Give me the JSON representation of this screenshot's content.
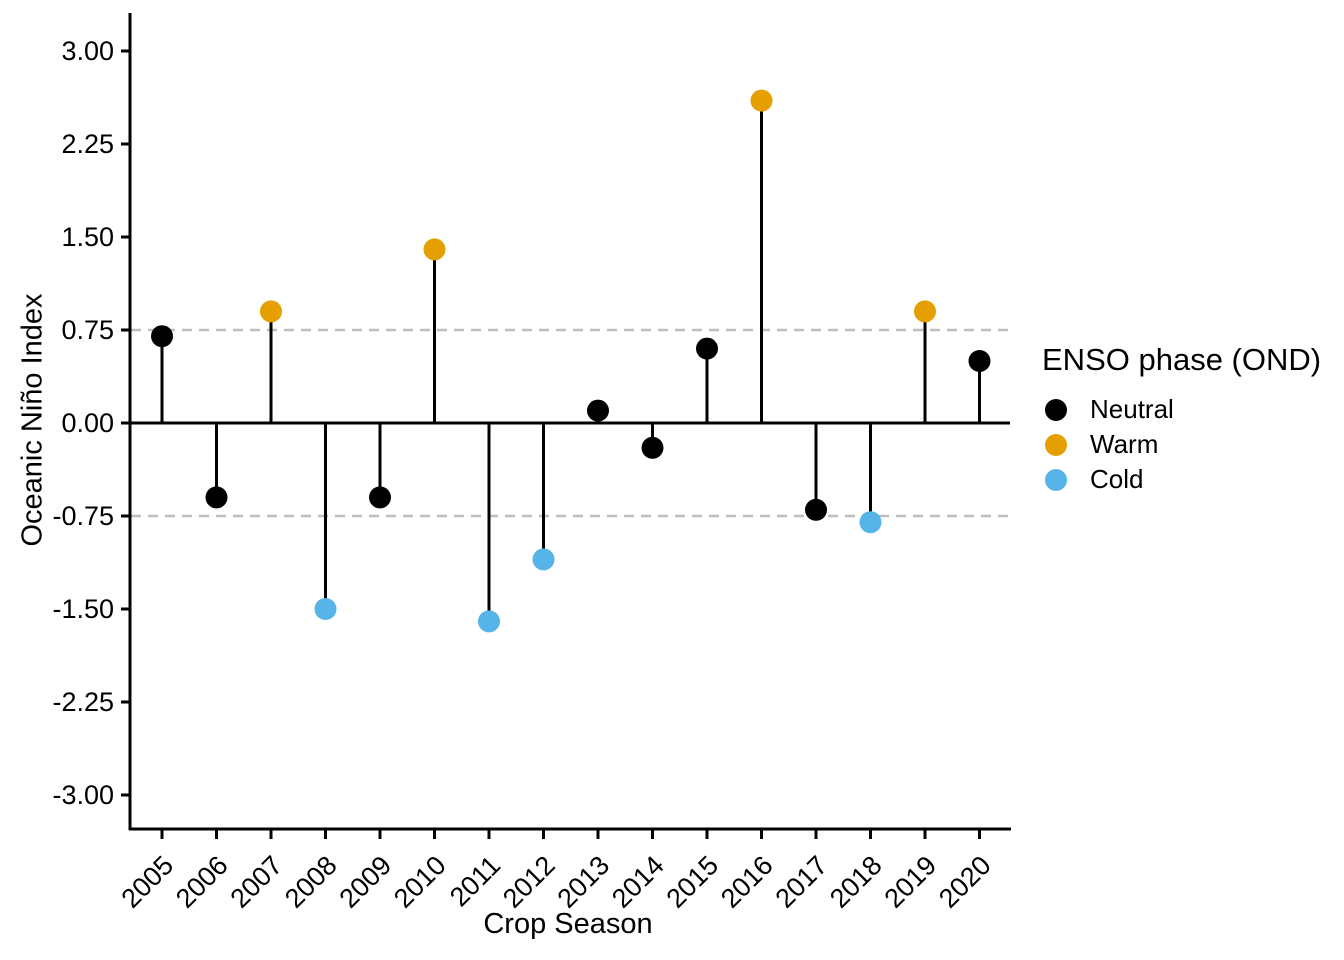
{
  "chart_data": {
    "type": "lollipop",
    "xlabel": "Crop Season",
    "ylabel": "Oceanic Niño Index",
    "categories": [
      "2005",
      "2006",
      "2007",
      "2008",
      "2009",
      "2010",
      "2011",
      "2012",
      "2013",
      "2014",
      "2015",
      "2016",
      "2017",
      "2018",
      "2019",
      "2020"
    ],
    "series": [
      {
        "name": "Oceanic Niño Index (OND)",
        "values": [
          0.7,
          -0.6,
          0.9,
          -1.5,
          -0.6,
          1.4,
          -1.6,
          -1.1,
          0.1,
          -0.2,
          0.6,
          2.6,
          -0.7,
          -0.8,
          0.9,
          0.5
        ]
      }
    ],
    "point_phases": [
      "Neutral",
      "Neutral",
      "Warm",
      "Cold",
      "Neutral",
      "Warm",
      "Cold",
      "Cold",
      "Neutral",
      "Neutral",
      "Neutral",
      "Warm",
      "Neutral",
      "Cold",
      "Warm",
      "Neutral"
    ],
    "phase_colors": {
      "Neutral": "#000000",
      "Warm": "#E69F00",
      "Cold": "#56B4E9"
    },
    "y_ticks": [
      {
        "value": 3.0,
        "label": "3.00"
      },
      {
        "value": 2.25,
        "label": "2.25"
      },
      {
        "value": 1.5,
        "label": "1.50"
      },
      {
        "value": 0.75,
        "label": "0.75"
      },
      {
        "value": 0.0,
        "label": "0.00"
      },
      {
        "value": -0.75,
        "label": "-0.75"
      },
      {
        "value": -1.5,
        "label": "-1.50"
      },
      {
        "value": -2.25,
        "label": "-2.25"
      },
      {
        "value": -3.0,
        "label": "-3.00"
      }
    ],
    "ylim": [
      -3.3,
      3.3
    ],
    "reference_lines": {
      "zero": 0,
      "dashed_thresholds": [
        0.75,
        -0.75
      ]
    },
    "grid": "off (only dashed threshold lines)",
    "legend": {
      "title": "ENSO phase (OND)",
      "position": "right",
      "entries": [
        {
          "label": "Neutral",
          "color": "#000000"
        },
        {
          "label": "Warm",
          "color": "#E69F00"
        },
        {
          "label": "Cold",
          "color": "#56B4E9"
        }
      ]
    },
    "colors": {
      "axis": "#000000",
      "threshold_dash": "#BEBEBE",
      "background": "#FFFFFF",
      "text": "#000000"
    }
  }
}
